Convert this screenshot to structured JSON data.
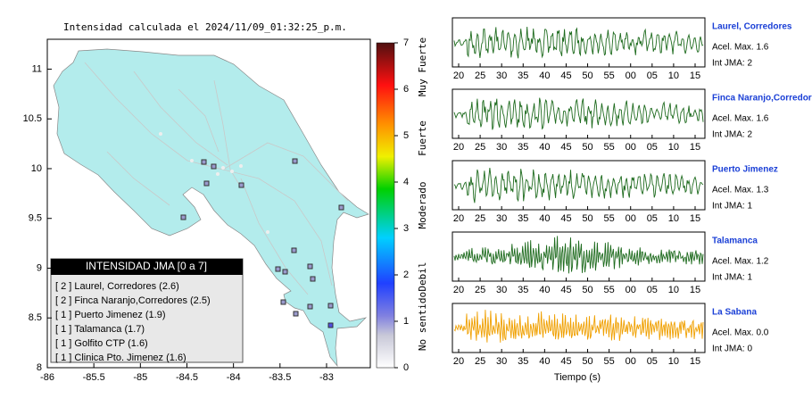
{
  "map": {
    "title": "Intensidad calculada el 2024/11/09_01:32:25_p.m.",
    "xlim": [
      -86,
      -82.53
    ],
    "xticks": [
      -86,
      -85.5,
      -85,
      -84.5,
      -84,
      -83.5,
      -83
    ],
    "ylim": [
      8,
      11.3
    ],
    "yticks": [
      8,
      8.5,
      9,
      9.5,
      10,
      10.5,
      11
    ],
    "legend": {
      "title": "INTENSIDAD JMA [0 a 7]",
      "entries": [
        "[ 2 ]  Laurel, Corredores (2.6)",
        "[ 2 ]  Finca Naranjo,Corredores (2.5)",
        "[ 1 ]  Puerto Jimenez (1.9)",
        "[ 1 ]  Talamanca (1.7)",
        "[ 1 ]  Golfito CTP (1.6)",
        "[ 1 ]  Clinica Pto. Jimenez (1.6)"
      ]
    }
  },
  "colorbar": {
    "lim": [
      0,
      7
    ],
    "ticks": [
      0,
      1,
      2,
      3,
      4,
      5,
      6,
      7
    ],
    "labels": [
      "No sentido",
      "Debil",
      "Moderado",
      "Fuerte",
      "Muy Fuerte"
    ]
  },
  "waveforms": {
    "time_labels": [
      "20",
      "25",
      "30",
      "35",
      "40",
      "45",
      "50",
      "55",
      "00",
      "05",
      "10",
      "15"
    ],
    "xlabel": "Tiempo (s)",
    "stations": [
      {
        "name": "Laurel, Corredores",
        "acel": "Acel. Max. 1.6",
        "int": "Int JMA: 2",
        "color": "#1e6b1e"
      },
      {
        "name": "Finca Naranjo,Corredores",
        "acel": "Acel. Max. 1.6",
        "int": "Int JMA: 2",
        "color": "#1e6b1e"
      },
      {
        "name": "Puerto Jimenez",
        "acel": "Acel. Max. 1.3",
        "int": "Int JMA: 1",
        "color": "#1e6b1e"
      },
      {
        "name": "Talamanca",
        "acel": "Acel. Max. 1.2",
        "int": "Int JMA: 1",
        "color": "#1e6b1e"
      },
      {
        "name": "La Sabana",
        "acel": "Acel. Max. 0.0",
        "int": "Int JMA: 0",
        "color": "#f0a000"
      }
    ]
  }
}
